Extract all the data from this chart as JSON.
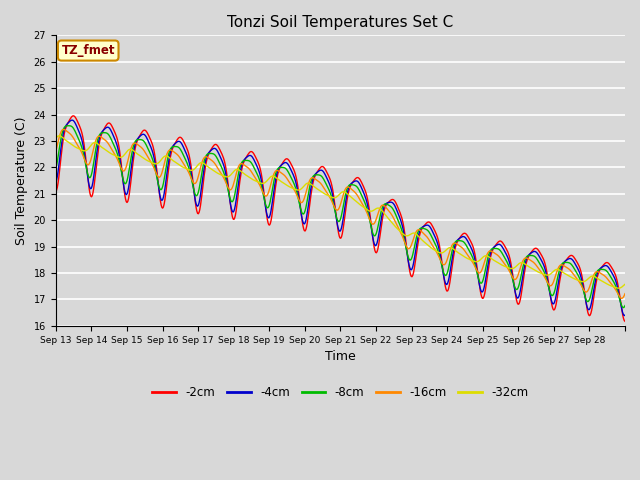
{
  "title": "Tonzi Soil Temperatures Set C",
  "xlabel": "Time",
  "ylabel": "Soil Temperature (C)",
  "ylim": [
    16.0,
    27.0
  ],
  "yticks": [
    16.0,
    17.0,
    18.0,
    19.0,
    20.0,
    21.0,
    22.0,
    23.0,
    24.0,
    25.0,
    26.0,
    27.0
  ],
  "xtick_labels": [
    "Sep 13",
    "Sep 14",
    "Sep 15",
    "Sep 16",
    "Sep 17",
    "Sep 18",
    "Sep 19",
    "Sep 20",
    "Sep 21",
    "Sep 22",
    "Sep 23",
    "Sep 24",
    "Sep 25",
    "Sep 26",
    "Sep 27",
    "Sep 28"
  ],
  "colors": {
    "-2cm": "#ff0000",
    "-4cm": "#0000cc",
    "-8cm": "#00bb00",
    "-16cm": "#ff8800",
    "-32cm": "#dddd00"
  },
  "legend_label": "TZ_fmet",
  "background_color": "#d8d8d8",
  "plot_bg_color": "#d8d8d8",
  "grid_color": "#ffffff",
  "figsize": [
    6.4,
    4.8
  ],
  "dpi": 100
}
